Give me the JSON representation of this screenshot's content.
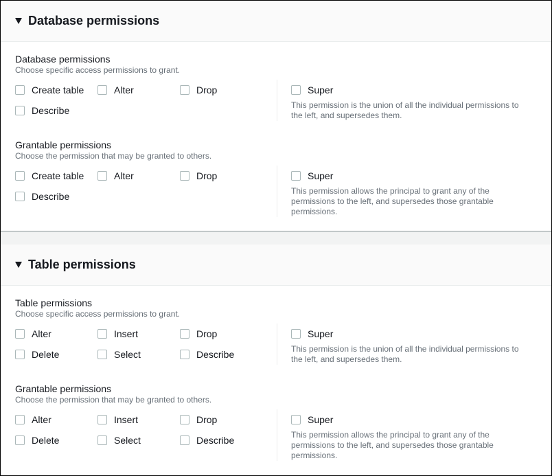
{
  "sections": [
    {
      "title": "Database permissions",
      "groups": [
        {
          "title": "Database permissions",
          "subtitle": "Choose specific access permissions to grant.",
          "options": [
            "Create table",
            "Alter",
            "Drop",
            "Describe"
          ],
          "super_label": "Super",
          "super_desc": "This permission is the union of all the individual permissions to the left, and supersedes them."
        },
        {
          "title": "Grantable permissions",
          "subtitle": "Choose the permission that may be granted to others.",
          "options": [
            "Create table",
            "Alter",
            "Drop",
            "Describe"
          ],
          "super_label": "Super",
          "super_desc": "This permission allows the principal to grant any of the permissions to the left, and supersedes those grantable permissions."
        }
      ]
    },
    {
      "title": "Table permissions",
      "groups": [
        {
          "title": "Table permissions",
          "subtitle": "Choose specific access permissions to grant.",
          "options": [
            "Alter",
            "Insert",
            "Drop",
            "Delete",
            "Select",
            "Describe"
          ],
          "super_label": "Super",
          "super_desc": "This permission is the union of all the individual permissions to the left, and supersedes them."
        },
        {
          "title": "Grantable permissions",
          "subtitle": "Choose the permission that may be granted to others.",
          "options": [
            "Alter",
            "Insert",
            "Drop",
            "Delete",
            "Select",
            "Describe"
          ],
          "super_label": "Super",
          "super_desc": "This permission allows the principal to grant any of the permissions to the left, and supersedes those grantable permissions."
        }
      ]
    }
  ],
  "all_checked": false
}
